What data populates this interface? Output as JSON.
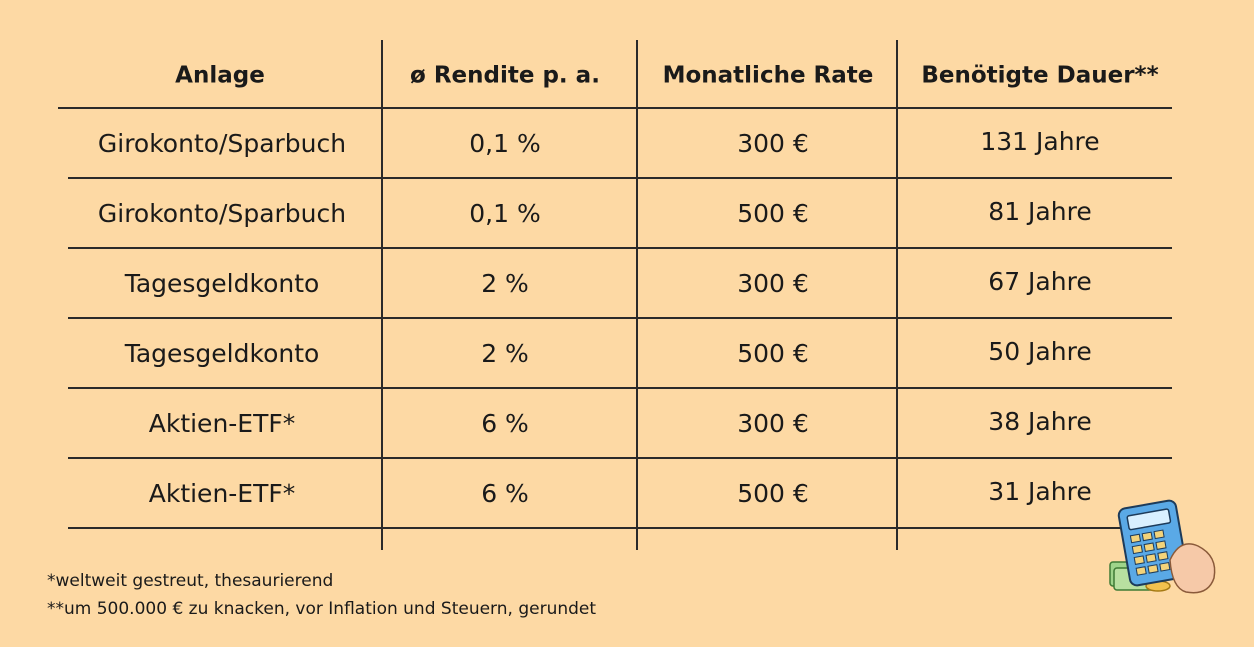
{
  "table": {
    "header": [
      "Anlage",
      "ø Rendite p. a.",
      "Monatliche Rate",
      "Benötigte Dauer**"
    ],
    "rows": [
      [
        "Girokonto/Sparbuch",
        "0,1 %",
        "300 €",
        "131 Jahre"
      ],
      [
        "Girokonto/Sparbuch",
        "0,1 %",
        "500 €",
        "81 Jahre"
      ],
      [
        "Tagesgeldkonto",
        "2 %",
        "300 €",
        "67 Jahre"
      ],
      [
        "Tagesgeldkonto",
        "2 %",
        "500 €",
        "50 Jahre"
      ],
      [
        "Aktien-ETF*",
        "6 %",
        "300 €",
        "38 Jahre"
      ],
      [
        "Aktien-ETF*",
        "6 %",
        "500 €",
        "31 Jahre"
      ]
    ]
  },
  "footnotes": [
    "*weltweit gestreut, thesaurierend",
    "**um 500.000 € zu knacken, vor Inflation und Steuern, gerundet"
  ]
}
